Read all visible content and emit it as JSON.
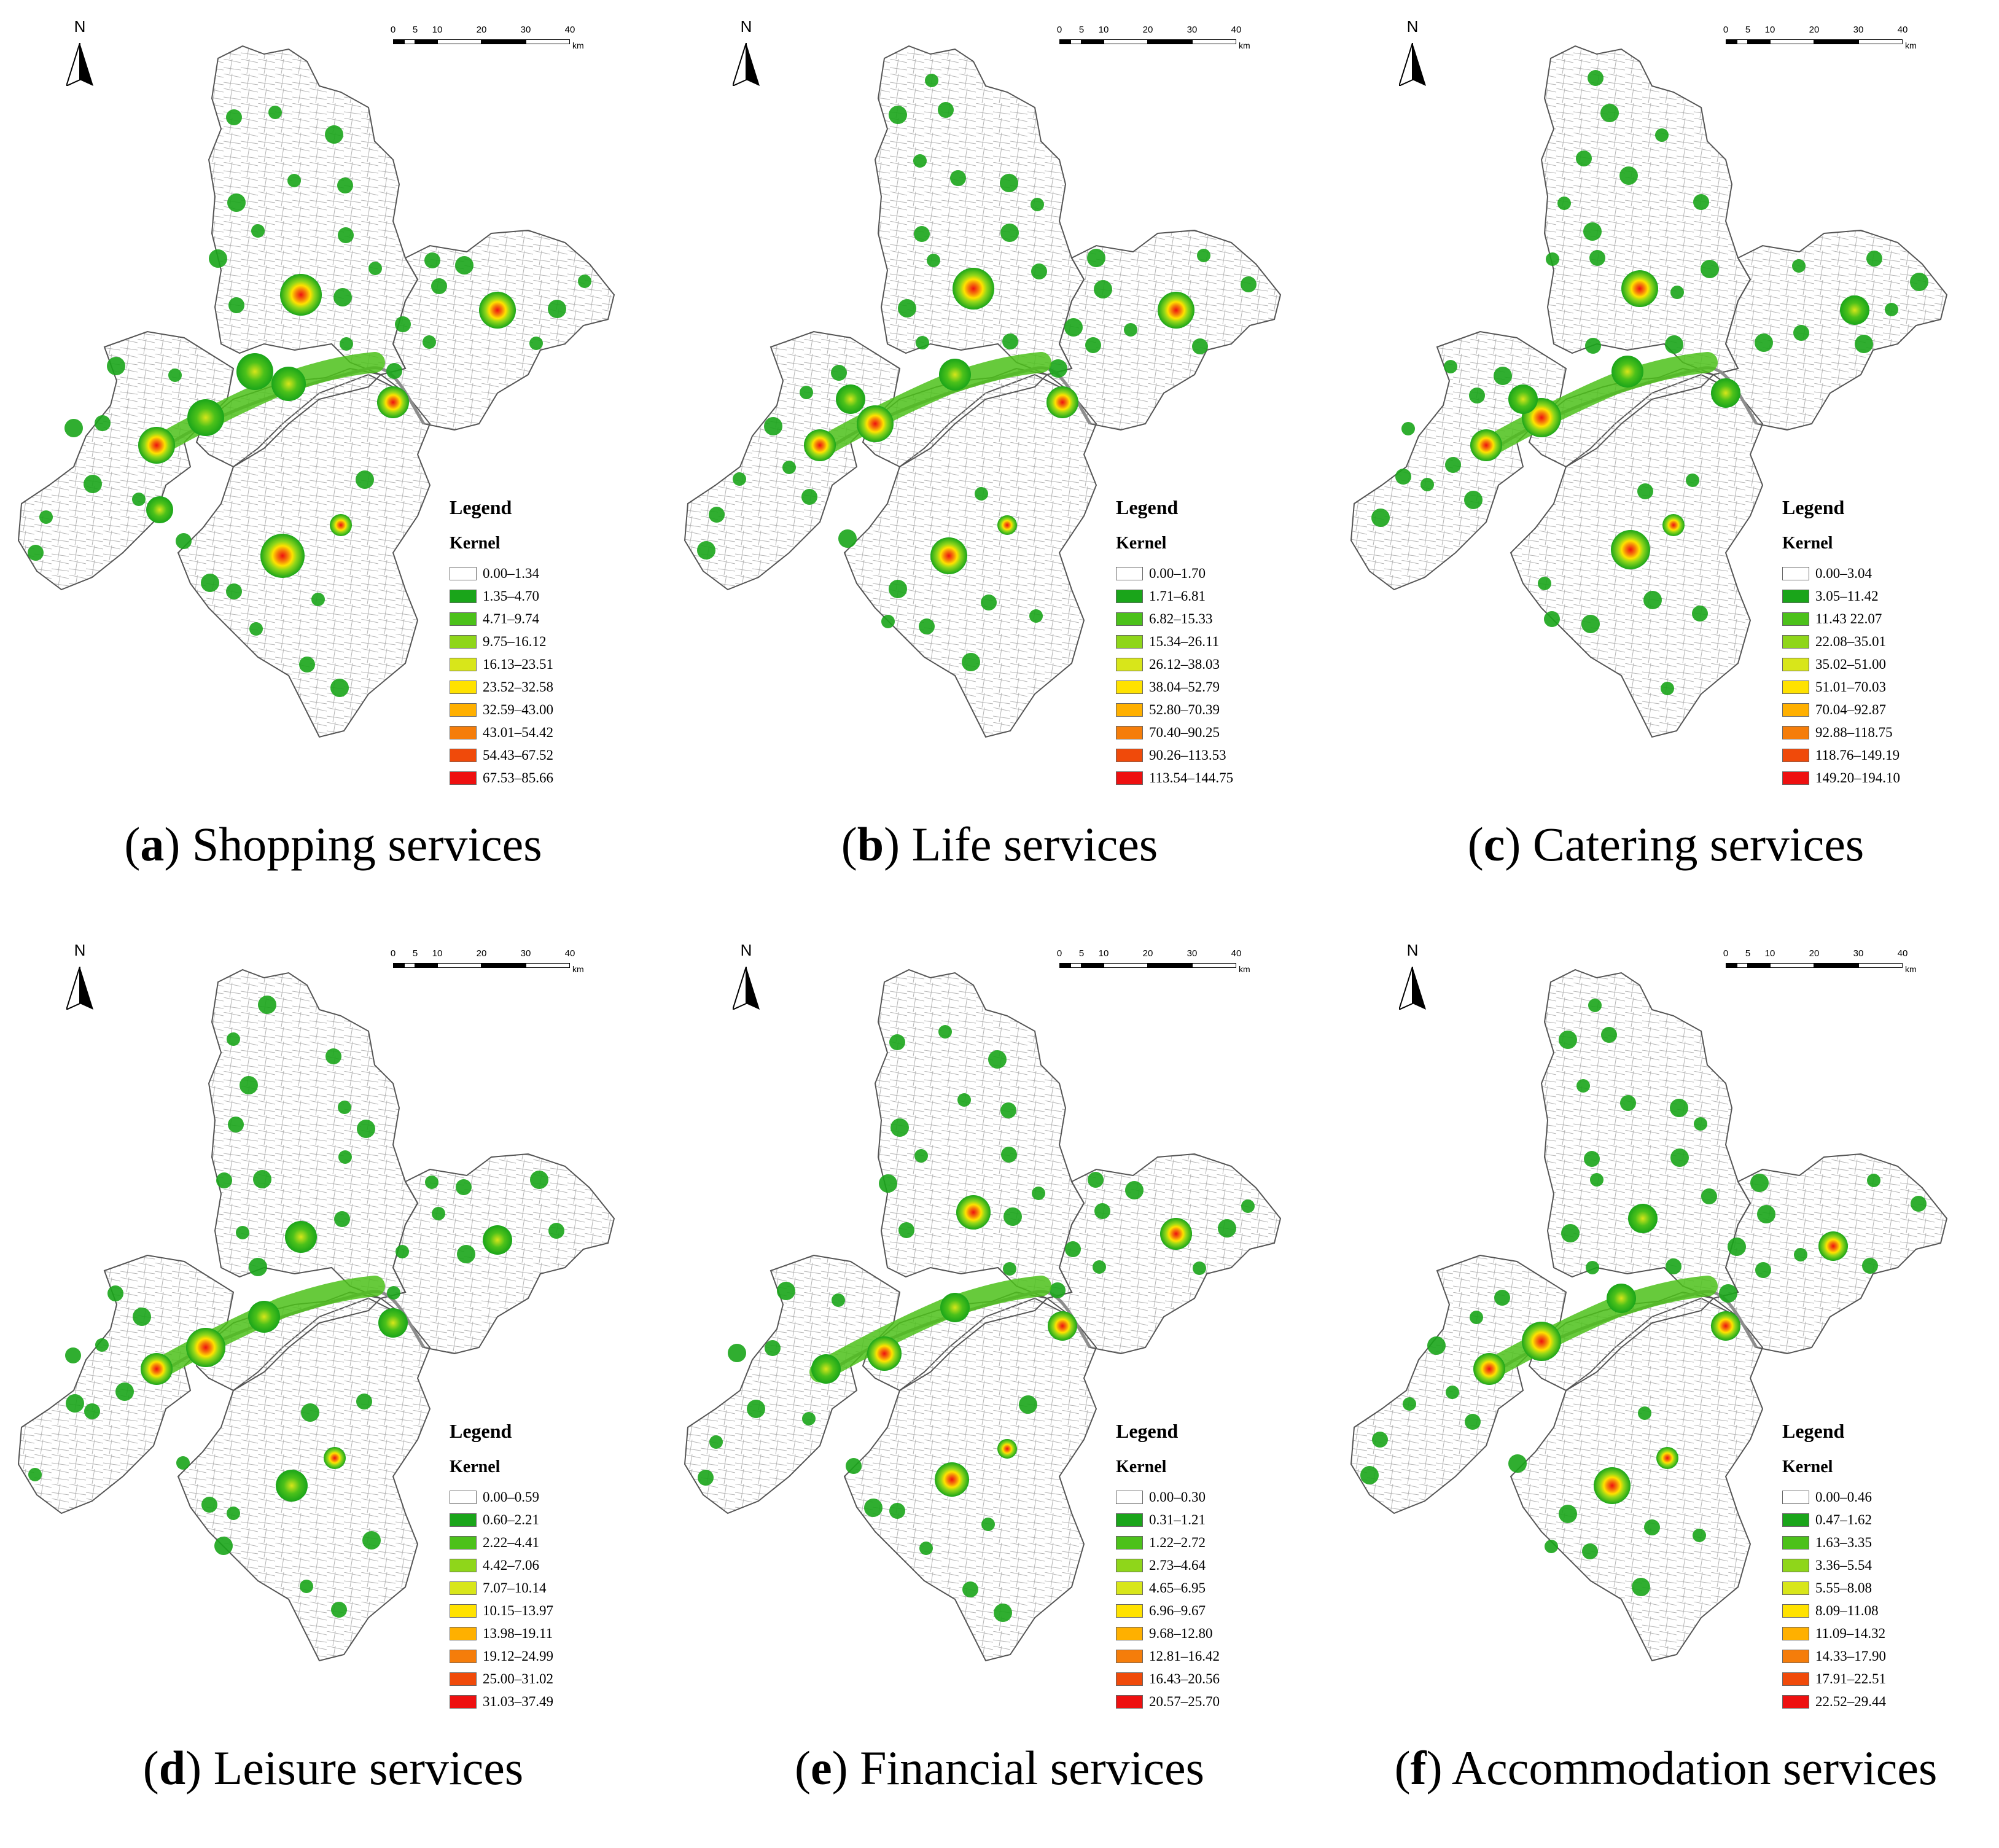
{
  "north_label": "N",
  "scale": {
    "ticks": [
      "0",
      "5",
      "10",
      "20",
      "30",
      "40"
    ],
    "unit": "km"
  },
  "legend_title": "Legend",
  "legend_subtitle": "Kernel",
  "colors": [
    "#ffffff",
    "#1aa51a",
    "#4cc11a",
    "#8fd61a",
    "#d8e61a",
    "#ffe200",
    "#ffb000",
    "#f57d0a",
    "#f04a0a",
    "#ee1010"
  ],
  "panels": [
    {
      "letter": "a",
      "title": "Shopping services",
      "classes": [
        "0.00–1.34",
        "1.35–4.70",
        "4.71–9.74",
        "9.75–16.12",
        "16.13–23.51",
        "23.52–32.58",
        "32.59–43.00",
        "43.01–54.42",
        "54.43–67.52",
        "67.53–85.66"
      ]
    },
    {
      "letter": "b",
      "title": "Life services",
      "classes": [
        "0.00–1.70",
        "1.71–6.81",
        "6.82–15.33",
        "15.34–26.11",
        "26.12–38.03",
        "38.04–52.79",
        "52.80–70.39",
        "70.40–90.25",
        "90.26–113.53",
        "113.54–144.75"
      ]
    },
    {
      "letter": "c",
      "title": "Catering services",
      "classes": [
        "0.00–3.04",
        "3.05–11.42",
        "11.43 22.07",
        "22.08–35.01",
        "35.02–51.00",
        "51.01–70.03",
        "70.04–92.87",
        "92.88–118.75",
        "118.76–149.19",
        "149.20–194.10"
      ]
    },
    {
      "letter": "d",
      "title": "Leisure services",
      "classes": [
        "0.00–0.59",
        "0.60–2.21",
        "2.22–4.41",
        "4.42–7.06",
        "7.07–10.14",
        "10.15–13.97",
        "13.98–19.11",
        "19.12–24.99",
        "25.00–31.02",
        "31.03–37.49"
      ]
    },
    {
      "letter": "e",
      "title": "Financial services",
      "classes": [
        "0.00–0.30",
        "0.31–1.21",
        "1.22–2.72",
        "2.73–4.64",
        "4.65–6.95",
        "6.96–9.67",
        "9.68–12.80",
        "12.81–16.42",
        "16.43–20.56",
        "20.57–25.70"
      ]
    },
    {
      "letter": "f",
      "title": "Accommodation services",
      "classes": [
        "0.00–0.46",
        "0.47–1.62",
        "1.63–3.35",
        "3.36–5.54",
        "5.55–8.08",
        "8.09–11.08",
        "11.09–14.32",
        "14.33–17.90",
        "17.91–22.51",
        "22.52–29.44"
      ]
    }
  ]
}
